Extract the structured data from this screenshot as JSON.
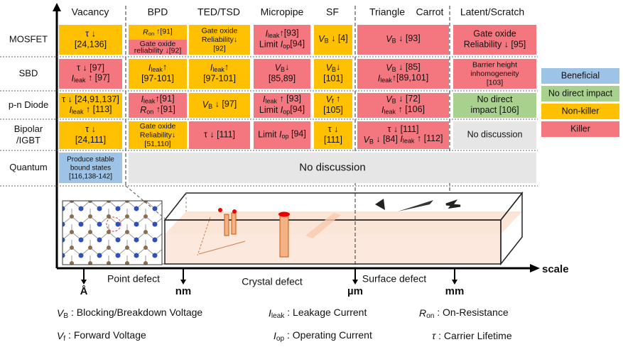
{
  "header": [
    "Vacancy",
    "BPD",
    "TED/TSD",
    "Micropipe",
    "SF",
    "Triangle",
    "Carrot",
    "Latent/Scratch"
  ],
  "rows": [
    {
      "label": [
        "MOSFET"
      ],
      "cells": [
        {
          "blocks": [
            {
              "color": "#ffc000",
              "lines": [
                [
                  "τ ↓"
                ],
                [
                  "[24,136]"
                ]
              ]
            }
          ]
        },
        {
          "blocks": [
            {
              "color": "#ffc000",
              "lines": [
                [
                  {
                    "text": "R",
                    "style": "italic"
                  },
                  {
                    "text": "on",
                    "style": "sub"
                  },
                  " ↑[91]"
                ]
              ]
            },
            {
              "color": "#f4777f",
              "lines": [
                [
                  "Gate oxide"
                ],
                [
                  "reliability ↓[92]"
                ]
              ]
            }
          ]
        },
        {
          "blocks": [
            {
              "color": "#ffc000",
              "lines": [
                [
                  "Gate oxide"
                ],
                [
                  "Reliability↓"
                ],
                [
                  "[92]"
                ]
              ]
            }
          ]
        },
        {
          "blocks": [
            {
              "color": "#f4777f",
              "lines": [
                [
                  {
                    "text": "I",
                    "style": "italic"
                  },
                  {
                    "text": "leak",
                    "style": "sub"
                  },
                  "↑[93]"
                ],
                [
                  "Limit ",
                  {
                    "text": "I",
                    "style": "italic"
                  },
                  {
                    "text": "op",
                    "style": "sub"
                  },
                  "[94]"
                ]
              ]
            }
          ]
        },
        {
          "blocks": [
            {
              "color": "#ffc000",
              "lines": [
                [
                  {
                    "text": "V",
                    "style": "italic"
                  },
                  {
                    "text": "B",
                    "style": "sub"
                  },
                  " ↓ [4]"
                ]
              ]
            }
          ]
        },
        {
          "blocks": [
            {
              "color": "#f4777f",
              "lines": [
                [
                  {
                    "text": "V",
                    "style": "italic"
                  },
                  {
                    "text": "B",
                    "style": "sub"
                  },
                  " ↓ [93]"
                ]
              ]
            }
          ]
        },
        {
          "blocks": [
            {
              "color": "#f4777f",
              "lines": [
                [
                  "Gate oxide"
                ],
                [
                  "Reliability ↓ [95]"
                ]
              ]
            }
          ]
        }
      ]
    },
    {
      "label": [
        "SBD"
      ],
      "cells": [
        {
          "blocks": [
            {
              "color": "#f4777f",
              "lines": [
                [
                  "τ ↓ [97]"
                ],
                [
                  {
                    "text": "I",
                    "style": "italic"
                  },
                  {
                    "text": "leak",
                    "style": "sub"
                  },
                  " ↑ [97]"
                ]
              ]
            }
          ]
        },
        {
          "blocks": [
            {
              "color": "#ffc000",
              "lines": [
                [
                  {
                    "text": "I",
                    "style": "italic"
                  },
                  {
                    "text": "leak",
                    "style": "sub"
                  },
                  "↑"
                ],
                [
                  "[97-101]"
                ]
              ]
            }
          ]
        },
        {
          "blocks": [
            {
              "color": "#ffc000",
              "lines": [
                [
                  {
                    "text": "I",
                    "style": "italic"
                  },
                  {
                    "text": "leak",
                    "style": "sub"
                  },
                  "↑"
                ],
                [
                  "[97-101]"
                ]
              ]
            }
          ]
        },
        {
          "blocks": [
            {
              "color": "#f4777f",
              "lines": [
                [
                  {
                    "text": "V",
                    "style": "italic"
                  },
                  {
                    "text": "B",
                    "style": "sub"
                  },
                  "↓"
                ],
                [
                  "[85,89]"
                ]
              ]
            }
          ]
        },
        {
          "blocks": [
            {
              "color": "#ffc000",
              "lines": [
                [
                  {
                    "text": "V",
                    "style": "italic"
                  },
                  {
                    "text": "B",
                    "style": "sub"
                  },
                  "↓"
                ],
                [
                  "[101]"
                ]
              ]
            }
          ]
        },
        {
          "blocks": [
            {
              "color": "#f4777f",
              "lines": [
                [
                  {
                    "text": "V",
                    "style": "italic"
                  },
                  {
                    "text": "B",
                    "style": "sub"
                  },
                  " ↓ [85]"
                ],
                [
                  {
                    "text": "I",
                    "style": "italic"
                  },
                  {
                    "text": "leak",
                    "style": "sub"
                  },
                  "↑[89,101]"
                ]
              ]
            }
          ]
        },
        {
          "blocks": [
            {
              "color": "#f4777f",
              "lines": [
                [
                  "Barrier height"
                ],
                [
                  "inhomogeneity"
                ],
                [
                  "[103]"
                ]
              ]
            }
          ]
        }
      ]
    },
    {
      "label": [
        "p-n Diode"
      ],
      "cells": [
        {
          "blocks": [
            {
              "color": "#ffc000",
              "lines": [
                [
                  "τ ↓ [24,91,137]"
                ],
                [
                  {
                    "text": "I",
                    "style": "italic"
                  },
                  {
                    "text": "leak",
                    "style": "sub"
                  },
                  " ↑ [113]"
                ]
              ]
            }
          ]
        },
        {
          "blocks": [
            {
              "color": "#f4777f",
              "lines": [
                [
                  {
                    "text": "I",
                    "style": "italic"
                  },
                  {
                    "text": "leak",
                    "style": "sub"
                  },
                  "↑[91]"
                ],
                [
                  {
                    "text": "R",
                    "style": "italic"
                  },
                  {
                    "text": "on",
                    "style": "sub"
                  },
                  " ↑[91]"
                ]
              ]
            }
          ]
        },
        {
          "blocks": [
            {
              "color": "#ffc000",
              "lines": [
                [
                  {
                    "text": "V",
                    "style": "italic"
                  },
                  {
                    "text": "B",
                    "style": "sub"
                  },
                  " ↓ [97]"
                ]
              ]
            }
          ]
        },
        {
          "blocks": [
            {
              "color": "#f4777f",
              "lines": [
                [
                  {
                    "text": "I",
                    "style": "italic"
                  },
                  {
                    "text": "leak",
                    "style": "sub"
                  },
                  " ↑ [93]"
                ],
                [
                  "Limit ",
                  {
                    "text": "I",
                    "style": "italic"
                  },
                  {
                    "text": "op",
                    "style": "sub"
                  },
                  "[94]"
                ]
              ]
            }
          ]
        },
        {
          "blocks": [
            {
              "color": "#ffc000",
              "lines": [
                [
                  {
                    "text": "V",
                    "style": "italic"
                  },
                  {
                    "text": "f",
                    "style": "sub"
                  },
                  " ↑"
                ],
                [
                  "[105]"
                ]
              ]
            }
          ]
        },
        {
          "blocks": [
            {
              "color": "#f4777f",
              "lines": [
                [
                  {
                    "text": "V",
                    "style": "italic"
                  },
                  {
                    "text": "B",
                    "style": "sub"
                  },
                  " ↓ [72]"
                ],
                [
                  {
                    "text": "I",
                    "style": "italic"
                  },
                  {
                    "text": "leak",
                    "style": "sub"
                  },
                  " ↑ [106]"
                ]
              ]
            }
          ]
        },
        {
          "blocks": [
            {
              "color": "#a9d18e",
              "lines": [
                [
                  "No direct"
                ],
                [
                  "impact [106]"
                ]
              ]
            }
          ]
        }
      ]
    },
    {
      "label": [
        "Bipolar",
        "/IGBT"
      ],
      "cells": [
        {
          "blocks": [
            {
              "color": "#ffc000",
              "lines": [
                [
                  "τ ↓"
                ],
                [
                  "[24,111]"
                ]
              ]
            }
          ]
        },
        {
          "blocks": [
            {
              "color": "#ffc000",
              "lines": [
                [
                  "Gate oxide"
                ],
                [
                  "Reliability↓"
                ],
                [
                  "[51,110]"
                ]
              ]
            }
          ]
        },
        {
          "blocks": [
            {
              "color": "#f4777f",
              "lines": [
                [
                  "τ ↓ [111]"
                ]
              ]
            }
          ]
        },
        {
          "blocks": [
            {
              "color": "#f4777f",
              "lines": [
                [
                  "Limit ",
                  {
                    "text": "I",
                    "style": "italic"
                  },
                  {
                    "text": "op",
                    "style": "sub"
                  },
                  " [94]"
                ]
              ]
            }
          ]
        },
        {
          "blocks": [
            {
              "color": "#ffc000",
              "lines": [
                [
                  "τ ↓"
                ],
                [
                  "[111]"
                ]
              ]
            }
          ]
        },
        {
          "blocks": [
            {
              "color": "#f4777f",
              "lines": [
                [
                  "τ ↓ [111]"
                ],
                [
                  {
                    "text": "V",
                    "style": "italic"
                  },
                  {
                    "text": "B",
                    "style": "sub"
                  },
                  " ↓ [84]   ",
                  {
                    "text": "I",
                    "style": "italic"
                  },
                  {
                    "text": "leak",
                    "style": "sub"
                  },
                  " ↑ [112]"
                ]
              ]
            }
          ]
        },
        {
          "blocks": [
            {
              "color": "#e6e6e6",
              "lines": [
                [
                  "No discussion"
                ]
              ]
            }
          ]
        }
      ]
    },
    {
      "label": [
        "Quantum"
      ],
      "cells": [
        {
          "blocks": [
            {
              "color": "#9dc3e6",
              "lines": [
                [
                  "Produce stable"
                ],
                [
                  "bound states"
                ],
                [
                  "[116,138-142]"
                ]
              ]
            }
          ]
        },
        {
          "blocks": [
            {
              "color": "#e6e6e6",
              "lines": [
                [
                  "No discussion"
                ]
              ]
            }
          ]
        }
      ]
    }
  ],
  "legend": [
    {
      "label": "Beneficial",
      "color": "#9dc3e6"
    },
    {
      "label": "No direct impact",
      "color": "#a9d18e"
    },
    {
      "label": "Non-killer",
      "color": "#ffc000"
    },
    {
      "label": "Killer",
      "color": "#f4777f"
    }
  ],
  "axis": {
    "label": "scale",
    "ticks": [
      "Å",
      "nm",
      "µm",
      "mm"
    ],
    "regions": [
      "Point defect",
      "Crystal defect",
      "Surface defect"
    ]
  },
  "footnotes": [
    [
      {
        "text": "V",
        "style": "italic"
      },
      {
        "text": "B",
        "style": "sub"
      },
      " : Blocking/Breakdown Voltage"
    ],
    [
      {
        "text": "I",
        "style": "italic"
      },
      {
        "text": "leak",
        "style": "sub"
      },
      " : Leakage Current"
    ],
    [
      {
        "text": "R",
        "style": "italic"
      },
      {
        "text": "on",
        "style": "sub"
      },
      " : On-Resistance"
    ],
    [
      {
        "text": "V",
        "style": "italic"
      },
      {
        "text": "f",
        "style": "sub"
      },
      " : Forward Voltage"
    ],
    [
      {
        "text": "I",
        "style": "italic"
      },
      {
        "text": "op",
        "style": "sub"
      },
      " : Operating Current"
    ],
    [
      {
        "text": "τ",
        "style": "italic"
      },
      " : Carrier Lifetime"
    ]
  ]
}
